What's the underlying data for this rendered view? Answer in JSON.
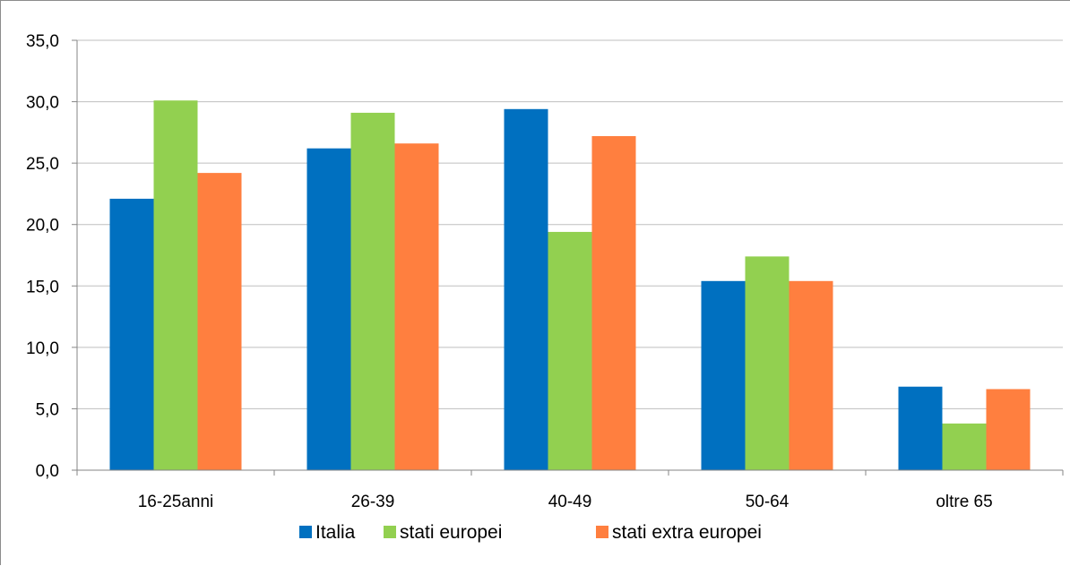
{
  "chart_data": {
    "type": "bar",
    "categories": [
      "16-25anni",
      "26-39",
      "40-49",
      "50-64",
      "oltre 65"
    ],
    "series": [
      {
        "name": "Italia",
        "color": "#0070C0",
        "values": [
          22.1,
          26.2,
          29.4,
          15.4,
          6.8
        ]
      },
      {
        "name": "stati europei",
        "color": "#92D050",
        "values": [
          30.1,
          29.1,
          19.4,
          17.4,
          3.8
        ]
      },
      {
        "name": "stati extra europei",
        "color": "#FF7F3F",
        "values": [
          24.2,
          26.6,
          27.2,
          15.4,
          6.6
        ]
      }
    ],
    "y_ticks": [
      "0,0",
      "5,0",
      "10,0",
      "15,0",
      "20,0",
      "25,0",
      "30,0",
      "35,0"
    ],
    "ylim": [
      0,
      35
    ],
    "title": "",
    "xlabel": "",
    "ylabel": "",
    "grid": true,
    "legend_position": "bottom"
  }
}
